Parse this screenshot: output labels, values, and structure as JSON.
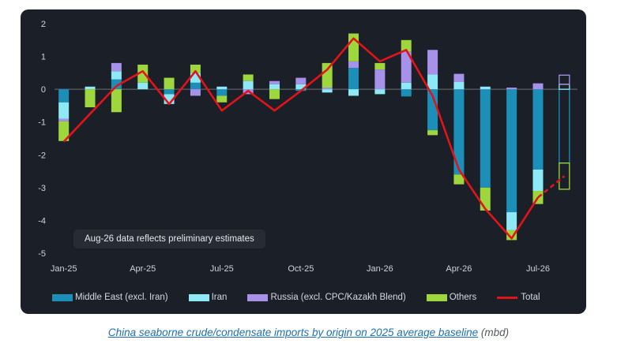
{
  "chart_data": {
    "type": "bar",
    "stacked": true,
    "categories": [
      "Jan-25",
      "Feb-25",
      "Mar-25",
      "Apr-25",
      "May-25",
      "Jun-25",
      "Jul-25",
      "Aug-25",
      "Sep-25",
      "Oct-25",
      "Nov-25",
      "Dec-25",
      "Jan-26",
      "Feb-26",
      "Mar-26",
      "Apr-26",
      "May-26",
      "Jun-26",
      "Jul-26",
      "Aug-26"
    ],
    "tick_labels": [
      "Jan-25",
      "",
      "",
      "Apr-25",
      "",
      "",
      "Jul-25",
      "",
      "",
      "Oct-25",
      "",
      "",
      "Jan-26",
      "",
      "",
      "Apr-26",
      "",
      "",
      "Jul-26",
      ""
    ],
    "series": [
      {
        "name": "Middle East (excl. Iran)",
        "color": "#1b8fb7",
        "values": [
          -0.4,
          0.0,
          0.3,
          0.0,
          -0.15,
          0.2,
          -0.2,
          0.0,
          0.0,
          -0.05,
          0.0,
          0.65,
          0.0,
          -0.22,
          -1.25,
          -2.6,
          -3.0,
          -3.75,
          -2.45,
          -2.25
        ]
      },
      {
        "name": "Iran",
        "color": "#8ee9f7",
        "values": [
          -0.5,
          0.08,
          0.25,
          0.2,
          -0.3,
          0.3,
          0.08,
          0.25,
          0.15,
          0.15,
          -0.1,
          -0.2,
          -0.15,
          0.2,
          0.45,
          0.22,
          0.08,
          -0.55,
          -0.65,
          0.15
        ]
      },
      {
        "name": "Russia (excl. CPC/Kazakh Blend)",
        "color": "#a692e8",
        "values": [
          -0.08,
          0.0,
          0.25,
          0.0,
          0.0,
          -0.2,
          0.0,
          -0.15,
          0.1,
          0.2,
          0.05,
          0.2,
          0.6,
          0.95,
          0.75,
          0.25,
          0.0,
          0.05,
          0.18,
          0.28
        ]
      },
      {
        "name": "Others",
        "color": "#9ed63d",
        "values": [
          -0.6,
          -0.55,
          -0.7,
          0.55,
          0.35,
          0.25,
          -0.2,
          0.2,
          -0.3,
          0.0,
          0.75,
          0.85,
          0.2,
          0.35,
          -0.15,
          -0.3,
          -0.7,
          -0.3,
          -0.4,
          -0.8
        ]
      }
    ],
    "total": {
      "name": "Total",
      "color": "#e3131b",
      "values": [
        -1.6,
        -0.75,
        0.1,
        0.55,
        -0.45,
        0.55,
        -0.65,
        -0.05,
        -0.65,
        -0.05,
        0.6,
        1.55,
        0.85,
        1.2,
        -0.2,
        -2.45,
        -3.65,
        -4.55,
        -3.3,
        -2.65
      ],
      "dashed_from_index": 18
    },
    "preliminary_index": 19,
    "ylim": [
      -5,
      2
    ],
    "yticks": [
      2,
      1,
      0,
      -1,
      -2,
      -3,
      -4,
      -5
    ],
    "xlabel": "",
    "ylabel": "",
    "grid": false,
    "legend_position": "bottom",
    "annotation": "Aug-26 data reflects preliminary estimates"
  },
  "caption": {
    "link_text": "China seaborne crude/condensate imports by origin on 2025 average baseline",
    "suffix": " (mbd)"
  }
}
